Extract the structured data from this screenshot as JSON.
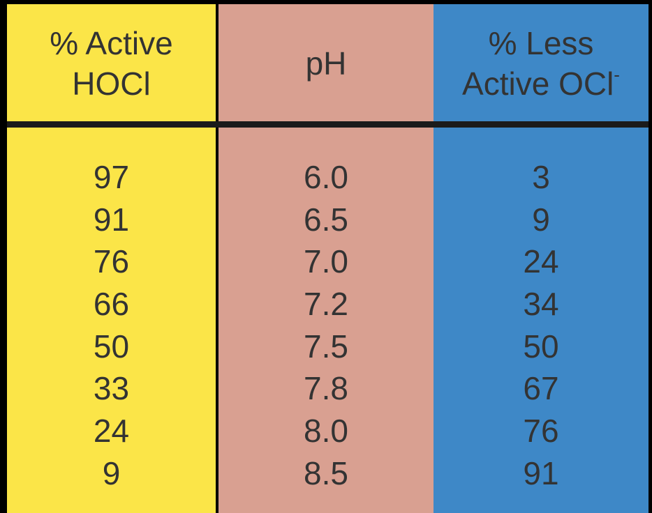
{
  "colors": {
    "background": "#000000",
    "hocl_column": "#FBE548",
    "ph_column": "#D9A091",
    "ocl_column": "#3E88C7",
    "divider": "#1B1B1B",
    "text": "#333333"
  },
  "chart_data": {
    "type": "table",
    "columns": [
      {
        "header_lines": [
          "% Active",
          "HOCl"
        ],
        "header_superscript": ""
      },
      {
        "header_lines": [
          "pH"
        ],
        "header_superscript": ""
      },
      {
        "header_lines": [
          "% Less",
          "Active OCl"
        ],
        "header_superscript": "-"
      }
    ],
    "rows": [
      [
        "97",
        "6.0",
        "3"
      ],
      [
        "91",
        "6.5",
        "9"
      ],
      [
        "76",
        "7.0",
        "24"
      ],
      [
        "66",
        "7.2",
        "34"
      ],
      [
        "50",
        "7.5",
        "50"
      ],
      [
        "33",
        "7.8",
        "67"
      ],
      [
        "24",
        "8.0",
        "76"
      ],
      [
        "9",
        "8.5",
        "91"
      ]
    ]
  }
}
